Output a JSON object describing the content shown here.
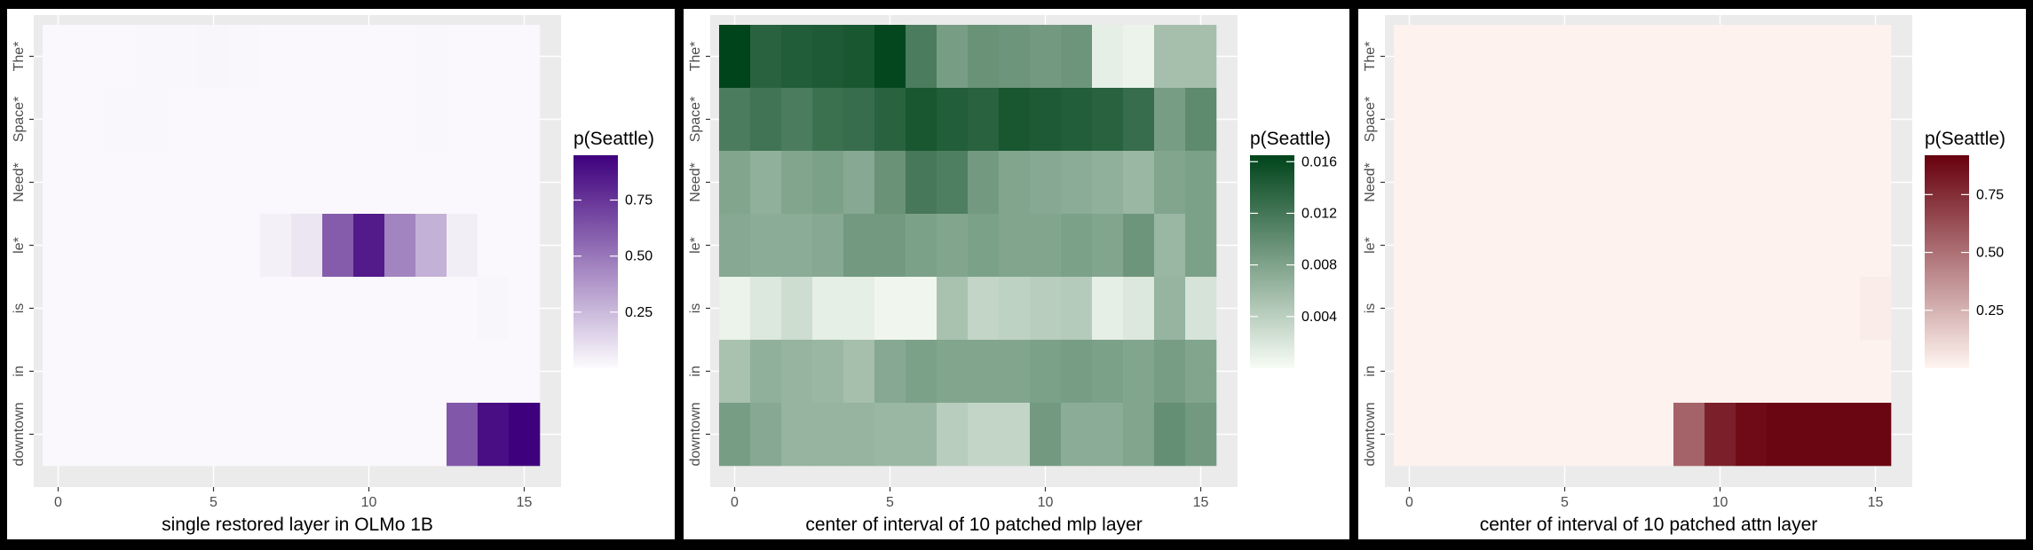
{
  "chart_data": [
    {
      "type": "heatmap",
      "xlabel": "single restored layer in OLMo 1B",
      "legend_title": "p(Seattle)",
      "colormap": "Purples",
      "color_low": "#fcfbfd",
      "color_high": "#3f007d",
      "x_ticks": [
        "0",
        "5",
        "10",
        "15"
      ],
      "x_tick_values": [
        0,
        5,
        10,
        15
      ],
      "x_range": [
        0,
        15
      ],
      "y_labels": [
        "The*",
        "Space*",
        "Need*",
        "le*",
        "is",
        "in",
        "downtown"
      ],
      "color_range": [
        0,
        0.95
      ],
      "legend_ticks": [
        "0.25",
        "0.50",
        "0.75"
      ],
      "legend_tick_values": [
        0.25,
        0.5,
        0.75
      ],
      "rows": [
        [
          0.01,
          0.01,
          0.01,
          0.015,
          0.015,
          0.02,
          0.015,
          0.01,
          0.01,
          0.01,
          0.01,
          0.01,
          0.015,
          0.01,
          0.01,
          0.01
        ],
        [
          0.01,
          0.01,
          0.015,
          0.015,
          0.01,
          0.01,
          0.01,
          0.01,
          0.01,
          0.01,
          0.01,
          0.01,
          0.015,
          0.01,
          0.01,
          0.01
        ],
        [
          0.01,
          0.01,
          0.01,
          0.01,
          0.01,
          0.01,
          0.01,
          0.01,
          0.01,
          0.01,
          0.01,
          0.01,
          0.01,
          0.01,
          0.01,
          0.01
        ],
        [
          0.01,
          0.01,
          0.01,
          0.01,
          0.01,
          0.01,
          0.01,
          0.04,
          0.08,
          0.6,
          0.85,
          0.45,
          0.28,
          0.05,
          0.01,
          0.01
        ],
        [
          0.01,
          0.01,
          0.01,
          0.01,
          0.01,
          0.01,
          0.01,
          0.01,
          0.01,
          0.01,
          0.01,
          0.01,
          0.01,
          0.01,
          0.02,
          0.01
        ],
        [
          0.01,
          0.01,
          0.01,
          0.01,
          0.01,
          0.01,
          0.01,
          0.01,
          0.01,
          0.01,
          0.01,
          0.01,
          0.01,
          0.01,
          0.01,
          0.01
        ],
        [
          0.01,
          0.01,
          0.01,
          0.01,
          0.01,
          0.01,
          0.01,
          0.01,
          0.01,
          0.01,
          0.01,
          0.01,
          0.01,
          0.62,
          0.9,
          0.95
        ]
      ]
    },
    {
      "type": "heatmap",
      "xlabel": "center of interval of 10 patched mlp layer",
      "legend_title": "p(Seattle)",
      "colormap": "Greens",
      "color_low": "#f7fcf5",
      "color_high": "#00441b",
      "x_ticks": [
        "0",
        "5",
        "10",
        "15"
      ],
      "x_tick_values": [
        0,
        5,
        10,
        15
      ],
      "x_range": [
        0,
        15
      ],
      "y_labels": [
        "The*",
        "Space*",
        "Need*",
        "le*",
        "is",
        "in",
        "downtown"
      ],
      "color_range": [
        0,
        0.0165
      ],
      "legend_ticks": [
        "0.004",
        "0.008",
        "0.012",
        "0.016"
      ],
      "legend_tick_values": [
        0.004,
        0.008,
        0.012,
        0.016
      ],
      "rows": [
        [
          0.0165,
          0.0138,
          0.0143,
          0.0145,
          0.0148,
          0.0162,
          0.0115,
          0.0085,
          0.0095,
          0.0092,
          0.0088,
          0.0092,
          0.0012,
          0.0008,
          0.0055,
          0.0055
        ],
        [
          0.0115,
          0.0122,
          0.0115,
          0.0125,
          0.0128,
          0.0138,
          0.0148,
          0.0142,
          0.0138,
          0.0148,
          0.0145,
          0.0142,
          0.0138,
          0.0128,
          0.0085,
          0.0102
        ],
        [
          0.0078,
          0.0068,
          0.0078,
          0.0082,
          0.0075,
          0.0095,
          0.0118,
          0.0112,
          0.0088,
          0.0078,
          0.0075,
          0.0072,
          0.0068,
          0.0062,
          0.0078,
          0.0082
        ],
        [
          0.0075,
          0.0072,
          0.0072,
          0.0075,
          0.0088,
          0.0088,
          0.0082,
          0.0078,
          0.0082,
          0.0078,
          0.0078,
          0.0082,
          0.0078,
          0.0092,
          0.0062,
          0.0082
        ],
        [
          0.0008,
          0.0018,
          0.0028,
          0.0012,
          0.0012,
          0.0005,
          0.0005,
          0.0052,
          0.0035,
          0.0038,
          0.0042,
          0.0045,
          0.0012,
          0.0018,
          0.0065,
          0.0022
        ],
        [
          0.0052,
          0.0068,
          0.0065,
          0.0062,
          0.0055,
          0.0075,
          0.0082,
          0.0078,
          0.0078,
          0.0078,
          0.0082,
          0.0085,
          0.0082,
          0.0078,
          0.0085,
          0.0078
        ],
        [
          0.0085,
          0.0075,
          0.0065,
          0.0065,
          0.0065,
          0.0062,
          0.0062,
          0.0042,
          0.0035,
          0.0035,
          0.0088,
          0.0072,
          0.0072,
          0.0078,
          0.0098,
          0.0088
        ]
      ]
    },
    {
      "type": "heatmap",
      "xlabel": "center of interval of 10 patched attn layer",
      "legend_title": "p(Seattle)",
      "colormap": "Reds",
      "color_low": "#fff5f0",
      "color_high": "#67000d",
      "x_ticks": [
        "0",
        "5",
        "10",
        "15"
      ],
      "x_tick_values": [
        0,
        5,
        10,
        15
      ],
      "x_range": [
        0,
        15
      ],
      "y_labels": [
        "The*",
        "Space*",
        "Need*",
        "le*",
        "is",
        "in",
        "downtown"
      ],
      "color_range": [
        0,
        0.92
      ],
      "legend_ticks": [
        "0.25",
        "0.50",
        "0.75"
      ],
      "legend_tick_values": [
        0.25,
        0.5,
        0.75
      ],
      "rows": [
        [
          0.01,
          0.01,
          0.01,
          0.01,
          0.01,
          0.01,
          0.01,
          0.01,
          0.01,
          0.01,
          0.01,
          0.01,
          0.01,
          0.01,
          0.01,
          0.01
        ],
        [
          0.01,
          0.01,
          0.01,
          0.01,
          0.01,
          0.01,
          0.01,
          0.01,
          0.01,
          0.01,
          0.01,
          0.01,
          0.01,
          0.01,
          0.01,
          0.01
        ],
        [
          0.01,
          0.01,
          0.01,
          0.01,
          0.01,
          0.01,
          0.01,
          0.01,
          0.01,
          0.01,
          0.01,
          0.01,
          0.01,
          0.01,
          0.01,
          0.01
        ],
        [
          0.01,
          0.01,
          0.01,
          0.01,
          0.01,
          0.01,
          0.01,
          0.01,
          0.01,
          0.01,
          0.01,
          0.01,
          0.01,
          0.01,
          0.01,
          0.01
        ],
        [
          0.01,
          0.01,
          0.01,
          0.01,
          0.01,
          0.01,
          0.01,
          0.01,
          0.01,
          0.01,
          0.01,
          0.01,
          0.01,
          0.01,
          0.01,
          0.03
        ],
        [
          0.01,
          0.01,
          0.01,
          0.01,
          0.01,
          0.01,
          0.01,
          0.01,
          0.01,
          0.01,
          0.01,
          0.01,
          0.01,
          0.01,
          0.01,
          0.01
        ],
        [
          0.01,
          0.01,
          0.01,
          0.01,
          0.01,
          0.01,
          0.01,
          0.01,
          0.01,
          0.55,
          0.8,
          0.88,
          0.9,
          0.9,
          0.9,
          0.9
        ]
      ]
    }
  ]
}
